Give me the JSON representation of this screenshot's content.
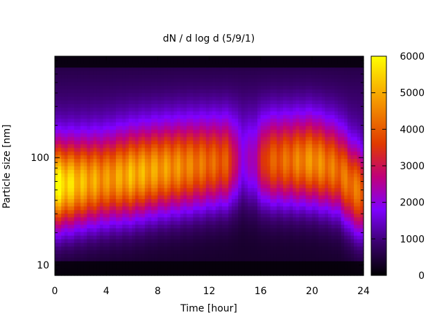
{
  "chart_data": {
    "type": "heatmap",
    "title": "dN / d log d (5/9/1)",
    "xlabel": "Time [hour]",
    "ylabel": "Particle size [nm]",
    "xlim": [
      0,
      24
    ],
    "ylim": [
      8,
      880
    ],
    "y_scale": "log",
    "x_ticks": [
      0,
      4,
      8,
      12,
      16,
      20,
      24
    ],
    "y_ticks": [
      10,
      100
    ],
    "colorbar": {
      "range": [
        0,
        6000
      ],
      "ticks": [
        0,
        1000,
        2000,
        3000,
        4000,
        5000,
        6000
      ],
      "colormap": [
        {
          "v": 0,
          "color": "#000000"
        },
        {
          "v": 0.15,
          "color": "#3b006e"
        },
        {
          "v": 0.3,
          "color": "#7f00ff"
        },
        {
          "v": 0.45,
          "color": "#c0007a"
        },
        {
          "v": 0.6,
          "color": "#e03a00"
        },
        {
          "v": 0.8,
          "color": "#f59a00"
        },
        {
          "v": 1.0,
          "color": "#ffff00"
        }
      ]
    },
    "mode_peak_nm": [
      {
        "t": 0,
        "d": 55,
        "n": 5600
      },
      {
        "t": 2,
        "d": 58,
        "n": 4700
      },
      {
        "t": 4,
        "d": 62,
        "n": 4200
      },
      {
        "t": 6,
        "d": 68,
        "n": 4600
      },
      {
        "t": 8,
        "d": 75,
        "n": 4300
      },
      {
        "t": 10,
        "d": 80,
        "n": 4000
      },
      {
        "t": 12,
        "d": 85,
        "n": 3600
      },
      {
        "t": 13.5,
        "d": 88,
        "n": 3300
      },
      {
        "t": 14.5,
        "d": 90,
        "n": 1400
      },
      {
        "t": 15.5,
        "d": 88,
        "n": 1700
      },
      {
        "t": 16.5,
        "d": 90,
        "n": 3300
      },
      {
        "t": 18,
        "d": 90,
        "n": 3600
      },
      {
        "t": 20,
        "d": 90,
        "n": 4100
      },
      {
        "t": 22,
        "d": 75,
        "n": 3700
      },
      {
        "t": 23,
        "d": 55,
        "n": 3900
      },
      {
        "t": 24,
        "d": 45,
        "n": 3800
      }
    ]
  }
}
